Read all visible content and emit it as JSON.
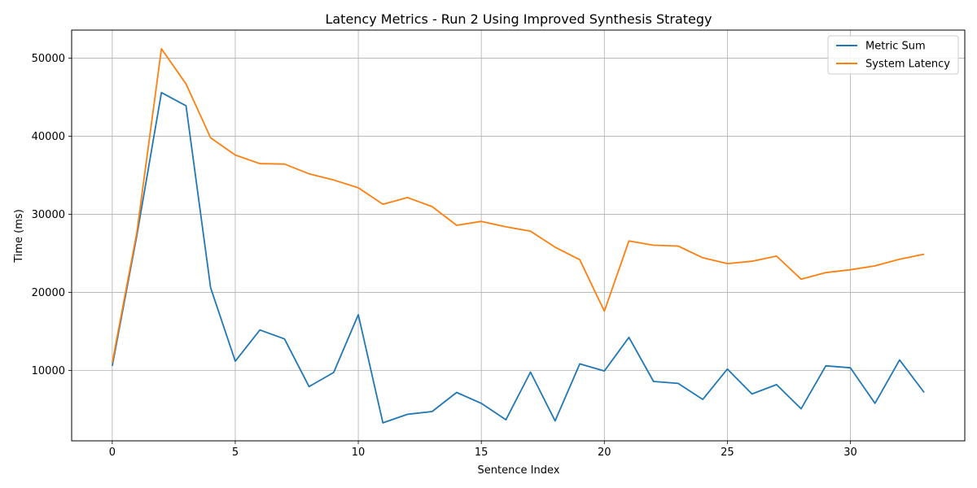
{
  "chart_data": {
    "type": "line",
    "title": "Latency Metrics - Run 2 Using Improved Synthesis Strategy",
    "xlabel": "Sentence Index",
    "ylabel": "Time (ms)",
    "xlim": [
      -1.65,
      34.65
    ],
    "ylim": [
      1000,
      53600
    ],
    "xticks": [
      0,
      5,
      10,
      15,
      20,
      25,
      30
    ],
    "yticks": [
      10000,
      20000,
      30000,
      40000,
      50000
    ],
    "grid": true,
    "legend_position": "top-right",
    "x": [
      0,
      1,
      2,
      3,
      4,
      5,
      6,
      7,
      8,
      9,
      10,
      11,
      12,
      13,
      14,
      15,
      16,
      17,
      18,
      19,
      20,
      21,
      22,
      23,
      24,
      25,
      26,
      27,
      28,
      29,
      30,
      31,
      32,
      33
    ],
    "series": [
      {
        "name": "Metric Sum",
        "color": "#1f77b4",
        "values": [
          10600,
          27300,
          45600,
          43900,
          20600,
          11200,
          15200,
          14050,
          7950,
          9750,
          17150,
          3300,
          4400,
          4750,
          7200,
          5800,
          3700,
          9800,
          3550,
          10850,
          9950,
          14250,
          8600,
          8350,
          6300,
          10200,
          7000,
          8200,
          5100,
          10600,
          10350,
          5800,
          11350,
          7200
        ]
      },
      {
        "name": "System Latency",
        "color": "#ff7f0e",
        "values": [
          11000,
          27700,
          51200,
          46700,
          39800,
          37600,
          36500,
          36450,
          35200,
          34400,
          33400,
          31300,
          32150,
          31000,
          28600,
          29100,
          28400,
          27850,
          25800,
          24200,
          17600,
          26600,
          26050,
          25950,
          24450,
          23700,
          24000,
          24650,
          21700,
          22550,
          22900,
          23400,
          24250,
          24900
        ]
      }
    ]
  }
}
